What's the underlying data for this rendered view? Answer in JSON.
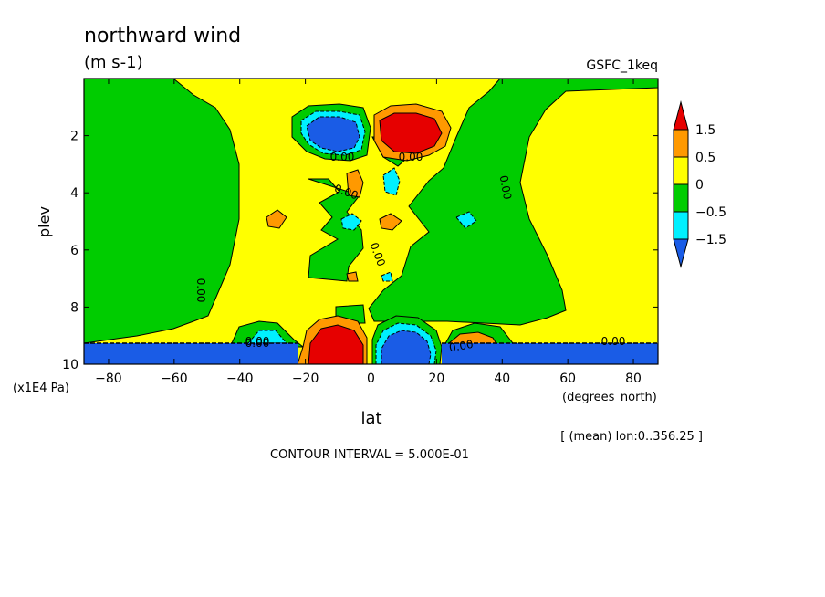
{
  "chart_data": {
    "type": "heatmap",
    "title": "northward wind",
    "units": "(m s-1)",
    "source_label": "GSFC_1keq",
    "xlabel": "lat",
    "ylabel": "plev",
    "x_units": "(degrees_north)",
    "y_units": "(x1E4 Pa)",
    "x_range": [
      -87.5,
      87.5
    ],
    "y_range": [
      0,
      10
    ],
    "x_ticks": [
      -80,
      -60,
      -40,
      -20,
      0,
      20,
      40,
      60,
      80
    ],
    "y_ticks": [
      2,
      4,
      6,
      8,
      10
    ],
    "x_tick_labels": [
      "−80",
      "−60",
      "−40",
      "−20",
      "0",
      "20",
      "40",
      "60",
      "80"
    ],
    "y_tick_labels": [
      "2",
      "4",
      "6",
      "8",
      "10"
    ],
    "averaging_note": "[ (mean) lon:0..356.25 ]",
    "contour_interval_text": "CONTOUR INTERVAL = 5.000E-01",
    "contour_labels": [
      "0.00",
      "0.00",
      "0.00",
      "0.00",
      "0.00",
      "0.00",
      "0.00",
      "0.00",
      "0.00",
      "0.00"
    ],
    "colorbar": {
      "levels": [
        -1.5,
        -0.5,
        0,
        0.5,
        1.5
      ],
      "level_labels": [
        "−1.5",
        "−0.5",
        "0",
        "0.5",
        "1.5"
      ],
      "colors": [
        "#1a5ce6",
        "#00f0ff",
        "#00cc00",
        "#ffff00",
        "#ff9900",
        "#e60000"
      ]
    },
    "features": [
      {
        "kind": "negative core",
        "lat": -8,
        "plev": 2.0,
        "value": -1.5
      },
      {
        "kind": "positive core",
        "lat": 8,
        "plev": 2.0,
        "value": 1.5
      },
      {
        "kind": "positive core",
        "lat": -8,
        "plev": 9.6,
        "value": 1.5
      },
      {
        "kind": "negative core",
        "lat": 8,
        "plev": 9.6,
        "value": -1.5
      },
      {
        "kind": "below-surface band",
        "lat_range": [
          -87.5,
          -22
        ],
        "plev_range": [
          9.2,
          10
        ],
        "value": -1.5
      },
      {
        "kind": "below-surface band",
        "lat_range": [
          22,
          87.5
        ],
        "plev_range": [
          9.2,
          10
        ],
        "value": -1.5
      }
    ]
  }
}
